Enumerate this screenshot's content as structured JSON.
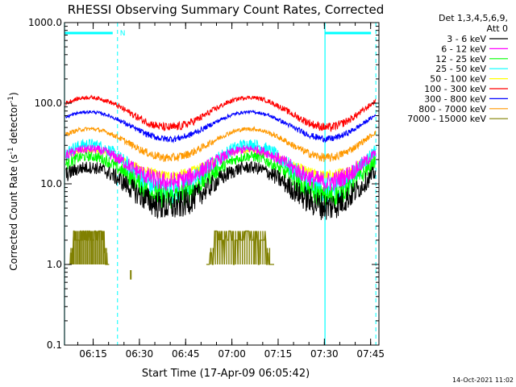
{
  "chart_data": {
    "type": "line",
    "title": "RHESSI Observing Summary Count Rates, Corrected",
    "xlabel": "Start Time (17-Apr-09 06:05:42)",
    "ylabel_main": "Corrected Count Rate (s",
    "ylabel_sup1": "-1",
    "ylabel_mid": " detector",
    "ylabel_sup2": "-1",
    "ylabel_end": ")",
    "yscale": "log",
    "ylim": [
      0.1,
      1000
    ],
    "xlim_minutes": [
      0,
      102
    ],
    "y_ticks": [
      {
        "value": 1000,
        "label": "1000.0"
      },
      {
        "value": 100,
        "label": "100.0"
      },
      {
        "value": 10,
        "label": "10.0"
      },
      {
        "value": 1,
        "label": "1.0"
      },
      {
        "value": 0.1,
        "label": "0.1"
      }
    ],
    "x_ticks": [
      {
        "minute": 9.3,
        "label": "06:15"
      },
      {
        "minute": 24.3,
        "label": "06:30"
      },
      {
        "minute": 39.3,
        "label": "06:45"
      },
      {
        "minute": 54.3,
        "label": "07:00"
      },
      {
        "minute": 69.3,
        "label": "07:15"
      },
      {
        "minute": 84.3,
        "label": "07:30"
      },
      {
        "minute": 99.3,
        "label": "07:45"
      }
    ],
    "legend": {
      "header1": "Det 1,3,4,5,6,9,",
      "header2": "Att 0",
      "placement": "top-right-outside"
    },
    "series": [
      {
        "name": "3 - 6 keV",
        "color": "#000000",
        "peak": 16,
        "base": 5.2,
        "noise": 0.13
      },
      {
        "name": "6 - 12 keV",
        "color": "#ff00ff",
        "peak": 27,
        "base": 10.5,
        "noise": 0.09
      },
      {
        "name": "12 - 25 keV",
        "color": "#00ff00",
        "peak": 22,
        "base": 6.8,
        "noise": 0.11
      },
      {
        "name": "25 - 50 keV",
        "color": "#00ffff",
        "peak": 31,
        "base": 8.2,
        "noise": 0.12
      },
      {
        "name": "50 - 100 keV",
        "color": "#ffff00",
        "peak": 26,
        "base": 12.5,
        "noise": 0.05
      },
      {
        "name": "100 - 300 keV",
        "color": "#ff0000",
        "peak": 118,
        "base": 50,
        "noise": 0.04
      },
      {
        "name": "300 - 800 keV",
        "color": "#0000ff",
        "peak": 78,
        "base": 36,
        "noise": 0.03
      },
      {
        "name": "800 - 7000 keV",
        "color": "#ff9900",
        "peak": 48,
        "base": 21,
        "noise": 0.04
      },
      {
        "name": "7000 - 15000 keV",
        "color": "#808000",
        "peak": 2.6,
        "base": 1.0,
        "noise": 0.0
      }
    ],
    "peak_minutes": [
      8,
      60
    ],
    "trough_minutes": [
      34,
      86
    ],
    "night_segments": [
      {
        "start": 0,
        "end": 17.2,
        "label": "N"
      },
      {
        "start": 84.5,
        "end": 101
      }
    ],
    "olive_blocks": [
      {
        "start": 1.2,
        "end": 14.5
      },
      {
        "start": 46,
        "end": 68
      }
    ],
    "olive_spike_minute": 21.5,
    "colors": {
      "axes": "#000000",
      "night_marker": "#00ffff",
      "background": "#ffffff"
    }
  },
  "footer": {
    "timestamp": "14-Oct-2021 11:02"
  }
}
